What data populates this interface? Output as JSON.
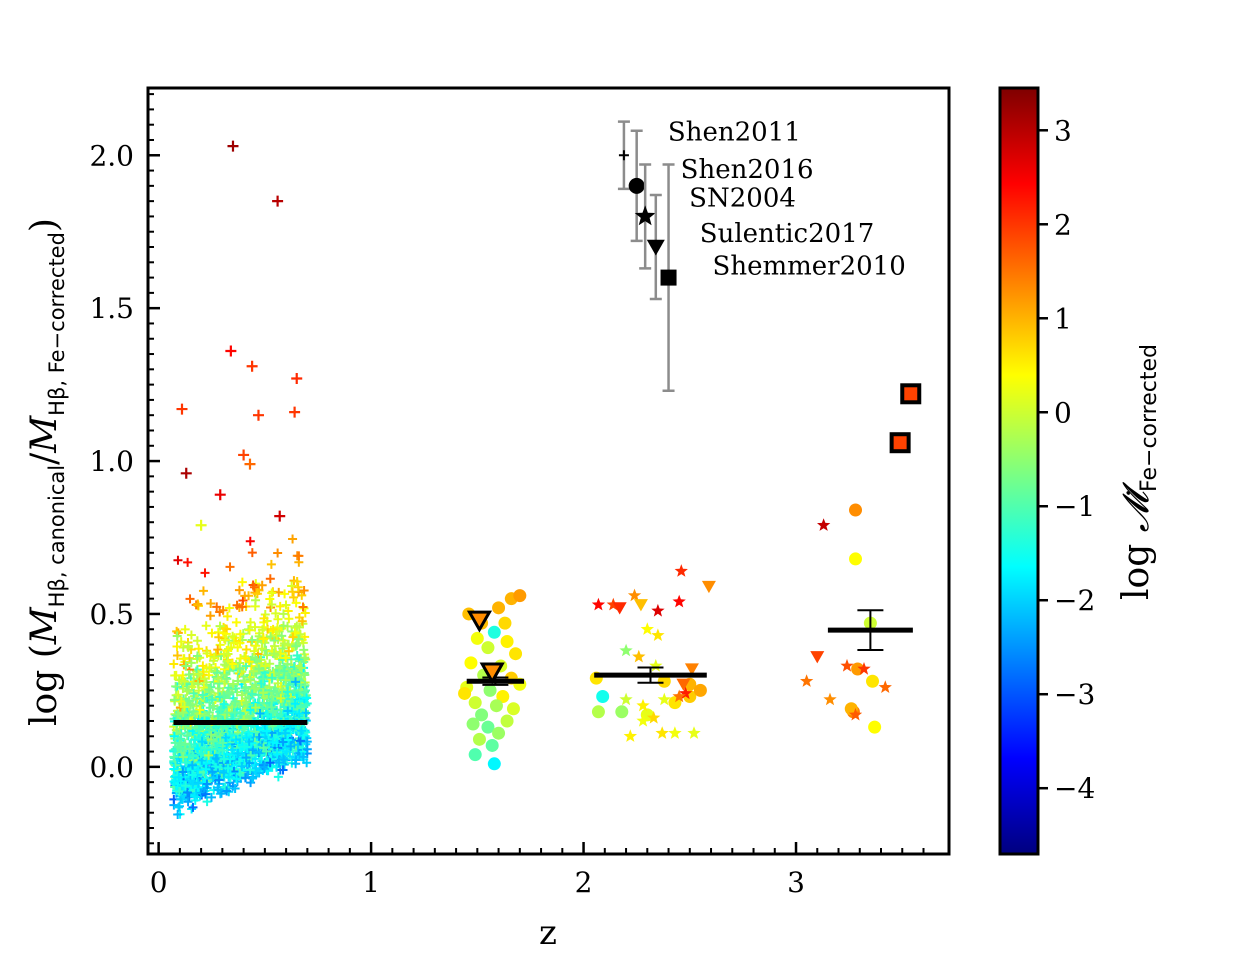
{
  "chart_data": {
    "type": "scatter",
    "xlabel": "z",
    "ylabel_prefix": "log (",
    "ylabel_M": "M",
    "ylabel_sub1": "Hβ, canonical",
    "ylabel_slash": "/",
    "ylabel_sub2": "Hβ, Fe−corrected",
    "ylabel_suffix": ")",
    "xlim": [
      -0.05,
      3.72
    ],
    "ylim": [
      -0.285,
      2.22
    ],
    "x_ticks": [
      0,
      1,
      2,
      3
    ],
    "x_tick_labels": [
      "0",
      "1",
      "2",
      "3"
    ],
    "y_ticks": [
      0.0,
      0.5,
      1.0,
      1.5,
      2.0
    ],
    "y_tick_labels": [
      "0.0",
      "0.5",
      "1.0",
      "1.5",
      "2.0"
    ],
    "colorbar": {
      "label_prefix": "log ",
      "label_symbol": "𝓜̇",
      "label_sub": "Fe−corrected",
      "range": [
        -4.7,
        3.45
      ],
      "ticks": [
        3,
        2,
        1,
        0,
        -1,
        -2,
        -3,
        -4
      ],
      "tick_labels": [
        "3",
        "2",
        "1",
        "0",
        "−1",
        "−2",
        "−3",
        "−4"
      ],
      "colors": [
        "#00007f",
        "#0000ff",
        "#007fff",
        "#00ffff",
        "#7fff7f",
        "#ffff00",
        "#ff7f00",
        "#ff0000",
        "#7f0000"
      ]
    },
    "medians": [
      {
        "x0": 0.07,
        "x1": 0.7,
        "y": 0.145
      },
      {
        "x0": 1.45,
        "x1": 1.72,
        "y": 0.28,
        "err": 0.012
      },
      {
        "x0": 2.05,
        "x1": 2.58,
        "y": 0.3,
        "err": 0.025
      },
      {
        "x0": 3.15,
        "x1": 3.55,
        "y": 0.447,
        "err": 0.065
      }
    ],
    "ref_points": [
      {
        "name": "Shen2011",
        "marker": "plus",
        "x": 2.19,
        "y": 2.0,
        "err": 0.11
      },
      {
        "name": "Shen2016",
        "marker": "circle",
        "x": 2.25,
        "y": 1.9,
        "err": 0.18
      },
      {
        "name": "SN2004",
        "marker": "star",
        "x": 2.29,
        "y": 1.8,
        "err": 0.17
      },
      {
        "name": "Sulentic2017",
        "marker": "triangle",
        "x": 2.34,
        "y": 1.7,
        "err": 0.17
      },
      {
        "name": "Shemmer2010",
        "marker": "square",
        "x": 2.4,
        "y": 1.6,
        "err": 0.37
      }
    ],
    "ref_labels": [
      "Shen2011",
      "Shen2016",
      "SN2004",
      "Sulentic2017",
      "Shemmer2010"
    ],
    "highlighted": [
      {
        "marker": "triangle",
        "x": 1.51,
        "y": 0.48,
        "c": 1.3
      },
      {
        "marker": "triangle",
        "x": 1.57,
        "y": 0.31,
        "c": 1.3
      },
      {
        "marker": "square",
        "x": 3.54,
        "y": 1.22,
        "c": 1.9
      },
      {
        "marker": "square",
        "x": 3.49,
        "y": 1.06,
        "c": 1.9
      }
    ],
    "high_plus": [
      {
        "x": 0.35,
        "y": 2.03,
        "c": 3.2
      },
      {
        "x": 0.56,
        "y": 1.85,
        "c": 3.0
      },
      {
        "x": 0.34,
        "y": 1.36,
        "c": 2.4
      },
      {
        "x": 0.44,
        "y": 1.31,
        "c": 2.0
      },
      {
        "x": 0.65,
        "y": 1.27,
        "c": 2.1
      },
      {
        "x": 0.11,
        "y": 1.17,
        "c": 2.0
      },
      {
        "x": 0.47,
        "y": 1.15,
        "c": 2.0
      },
      {
        "x": 0.64,
        "y": 1.16,
        "c": 2.0
      },
      {
        "x": 0.13,
        "y": 0.96,
        "c": 3.1
      },
      {
        "x": 0.4,
        "y": 1.02,
        "c": 1.9
      },
      {
        "x": 0.43,
        "y": 0.99,
        "c": 1.6
      },
      {
        "x": 0.29,
        "y": 0.89,
        "c": 2.6
      },
      {
        "x": 0.57,
        "y": 0.82,
        "c": 2.8
      },
      {
        "x": 0.2,
        "y": 0.79,
        "c": 0.2
      }
    ],
    "circles_z15": [
      {
        "x": 1.46,
        "y": 0.5,
        "c": 0.9
      },
      {
        "x": 1.52,
        "y": 0.47,
        "c": 0.9
      },
      {
        "x": 1.6,
        "y": 0.52,
        "c": 1.0
      },
      {
        "x": 1.66,
        "y": 0.55,
        "c": 1.0
      },
      {
        "x": 1.7,
        "y": 0.56,
        "c": 1.2
      },
      {
        "x": 1.63,
        "y": 0.47,
        "c": 0.7
      },
      {
        "x": 1.58,
        "y": 0.44,
        "c": -1.4
      },
      {
        "x": 1.5,
        "y": 0.42,
        "c": 0.3
      },
      {
        "x": 1.55,
        "y": 0.39,
        "c": 0.0
      },
      {
        "x": 1.64,
        "y": 0.41,
        "c": 0.5
      },
      {
        "x": 1.68,
        "y": 0.37,
        "c": 0.6
      },
      {
        "x": 1.47,
        "y": 0.34,
        "c": 0.4
      },
      {
        "x": 1.61,
        "y": 0.33,
        "c": 0.1
      },
      {
        "x": 1.53,
        "y": 0.3,
        "c": -0.2
      },
      {
        "x": 1.66,
        "y": 0.29,
        "c": 0.8
      },
      {
        "x": 1.45,
        "y": 0.26,
        "c": 0.2
      },
      {
        "x": 1.56,
        "y": 0.25,
        "c": -0.5
      },
      {
        "x": 1.62,
        "y": 0.23,
        "c": 0.5
      },
      {
        "x": 1.49,
        "y": 0.21,
        "c": 0.0
      },
      {
        "x": 1.59,
        "y": 0.2,
        "c": -0.3
      },
      {
        "x": 1.67,
        "y": 0.19,
        "c": 0.1
      },
      {
        "x": 1.52,
        "y": 0.17,
        "c": -0.6
      },
      {
        "x": 1.64,
        "y": 0.15,
        "c": -0.1
      },
      {
        "x": 1.55,
        "y": 0.13,
        "c": -0.8
      },
      {
        "x": 1.6,
        "y": 0.11,
        "c": -0.4
      },
      {
        "x": 1.51,
        "y": 0.09,
        "c": -0.2
      },
      {
        "x": 1.57,
        "y": 0.07,
        "c": -0.9
      },
      {
        "x": 1.49,
        "y": 0.04,
        "c": -1.0
      },
      {
        "x": 1.58,
        "y": 0.01,
        "c": -1.7
      },
      {
        "x": 1.44,
        "y": 0.24,
        "c": 0.6
      },
      {
        "x": 1.7,
        "y": 0.27,
        "c": 0.3
      },
      {
        "x": 1.48,
        "y": 0.14,
        "c": -0.5
      }
    ],
    "circles_z2": [
      {
        "x": 2.06,
        "y": 0.29,
        "c": 0.6
      },
      {
        "x": 2.07,
        "y": 0.18,
        "c": -0.2
      },
      {
        "x": 2.09,
        "y": 0.23,
        "c": -1.5
      },
      {
        "x": 2.18,
        "y": 0.18,
        "c": -0.4
      },
      {
        "x": 2.3,
        "y": 0.17,
        "c": 0.2
      },
      {
        "x": 2.43,
        "y": 0.21,
        "c": 0.6
      },
      {
        "x": 2.5,
        "y": 0.23,
        "c": 0.8
      },
      {
        "x": 2.38,
        "y": 0.28,
        "c": 0.7
      },
      {
        "x": 2.5,
        "y": 0.27,
        "c": 1.0
      },
      {
        "x": 2.55,
        "y": 0.25,
        "c": 1.1
      }
    ],
    "circles_z3": [
      {
        "x": 3.28,
        "y": 0.84,
        "c": 1.3
      },
      {
        "x": 3.28,
        "y": 0.68,
        "c": 0.4
      },
      {
        "x": 3.35,
        "y": 0.47,
        "c": 0.0
      },
      {
        "x": 3.29,
        "y": 0.32,
        "c": 1.2
      },
      {
        "x": 3.36,
        "y": 0.28,
        "c": 0.6
      },
      {
        "x": 3.27,
        "y": 0.18,
        "c": 1.4
      },
      {
        "x": 3.26,
        "y": 0.19,
        "c": 1.0
      },
      {
        "x": 3.37,
        "y": 0.13,
        "c": 0.4
      }
    ],
    "stars_z2": [
      {
        "x": 2.46,
        "y": 0.64,
        "c": 2.1
      },
      {
        "x": 2.45,
        "y": 0.54,
        "c": 2.4
      },
      {
        "x": 2.07,
        "y": 0.53,
        "c": 2.4
      },
      {
        "x": 2.14,
        "y": 0.53,
        "c": 1.9
      },
      {
        "x": 2.35,
        "y": 0.51,
        "c": 2.7
      },
      {
        "x": 2.24,
        "y": 0.56,
        "c": 1.3
      },
      {
        "x": 2.3,
        "y": 0.45,
        "c": 0.4
      },
      {
        "x": 2.35,
        "y": 0.43,
        "c": 0.6
      },
      {
        "x": 2.2,
        "y": 0.38,
        "c": -0.5
      },
      {
        "x": 2.26,
        "y": 0.36,
        "c": 0.9
      },
      {
        "x": 2.34,
        "y": 0.33,
        "c": 0.2
      },
      {
        "x": 2.48,
        "y": 0.24,
        "c": 2.2
      },
      {
        "x": 2.2,
        "y": 0.22,
        "c": 0.0
      },
      {
        "x": 2.45,
        "y": 0.23,
        "c": 1.5
      },
      {
        "x": 2.28,
        "y": 0.2,
        "c": 0.5
      },
      {
        "x": 2.38,
        "y": 0.22,
        "c": 0.2
      },
      {
        "x": 2.33,
        "y": 0.16,
        "c": 0.7
      },
      {
        "x": 2.28,
        "y": 0.15,
        "c": 0.3
      },
      {
        "x": 2.22,
        "y": 0.1,
        "c": 0.5
      },
      {
        "x": 2.37,
        "y": 0.11,
        "c": 0.6
      },
      {
        "x": 2.43,
        "y": 0.11,
        "c": 0.3
      },
      {
        "x": 2.52,
        "y": 0.11,
        "c": 0.2
      }
    ],
    "stars_z3": [
      {
        "x": 3.13,
        "y": 0.79,
        "c": 2.9
      },
      {
        "x": 3.05,
        "y": 0.28,
        "c": 1.5
      },
      {
        "x": 3.16,
        "y": 0.22,
        "c": 1.3
      },
      {
        "x": 3.32,
        "y": 0.32,
        "c": 2.0
      },
      {
        "x": 3.28,
        "y": 0.17,
        "c": 1.7
      },
      {
        "x": 3.42,
        "y": 0.26,
        "c": 1.6
      },
      {
        "x": 3.24,
        "y": 0.33,
        "c": 1.8
      }
    ],
    "tris_z2": [
      {
        "x": 2.17,
        "y": 0.52,
        "c": 2.1
      },
      {
        "x": 2.27,
        "y": 0.53,
        "c": 0.9
      },
      {
        "x": 2.59,
        "y": 0.59,
        "c": 1.3
      },
      {
        "x": 2.47,
        "y": 0.27,
        "c": 1.6
      },
      {
        "x": 2.51,
        "y": 0.32,
        "c": 1.4
      }
    ],
    "tris_z3": [
      {
        "x": 3.1,
        "y": 0.36,
        "c": 1.9
      }
    ]
  }
}
